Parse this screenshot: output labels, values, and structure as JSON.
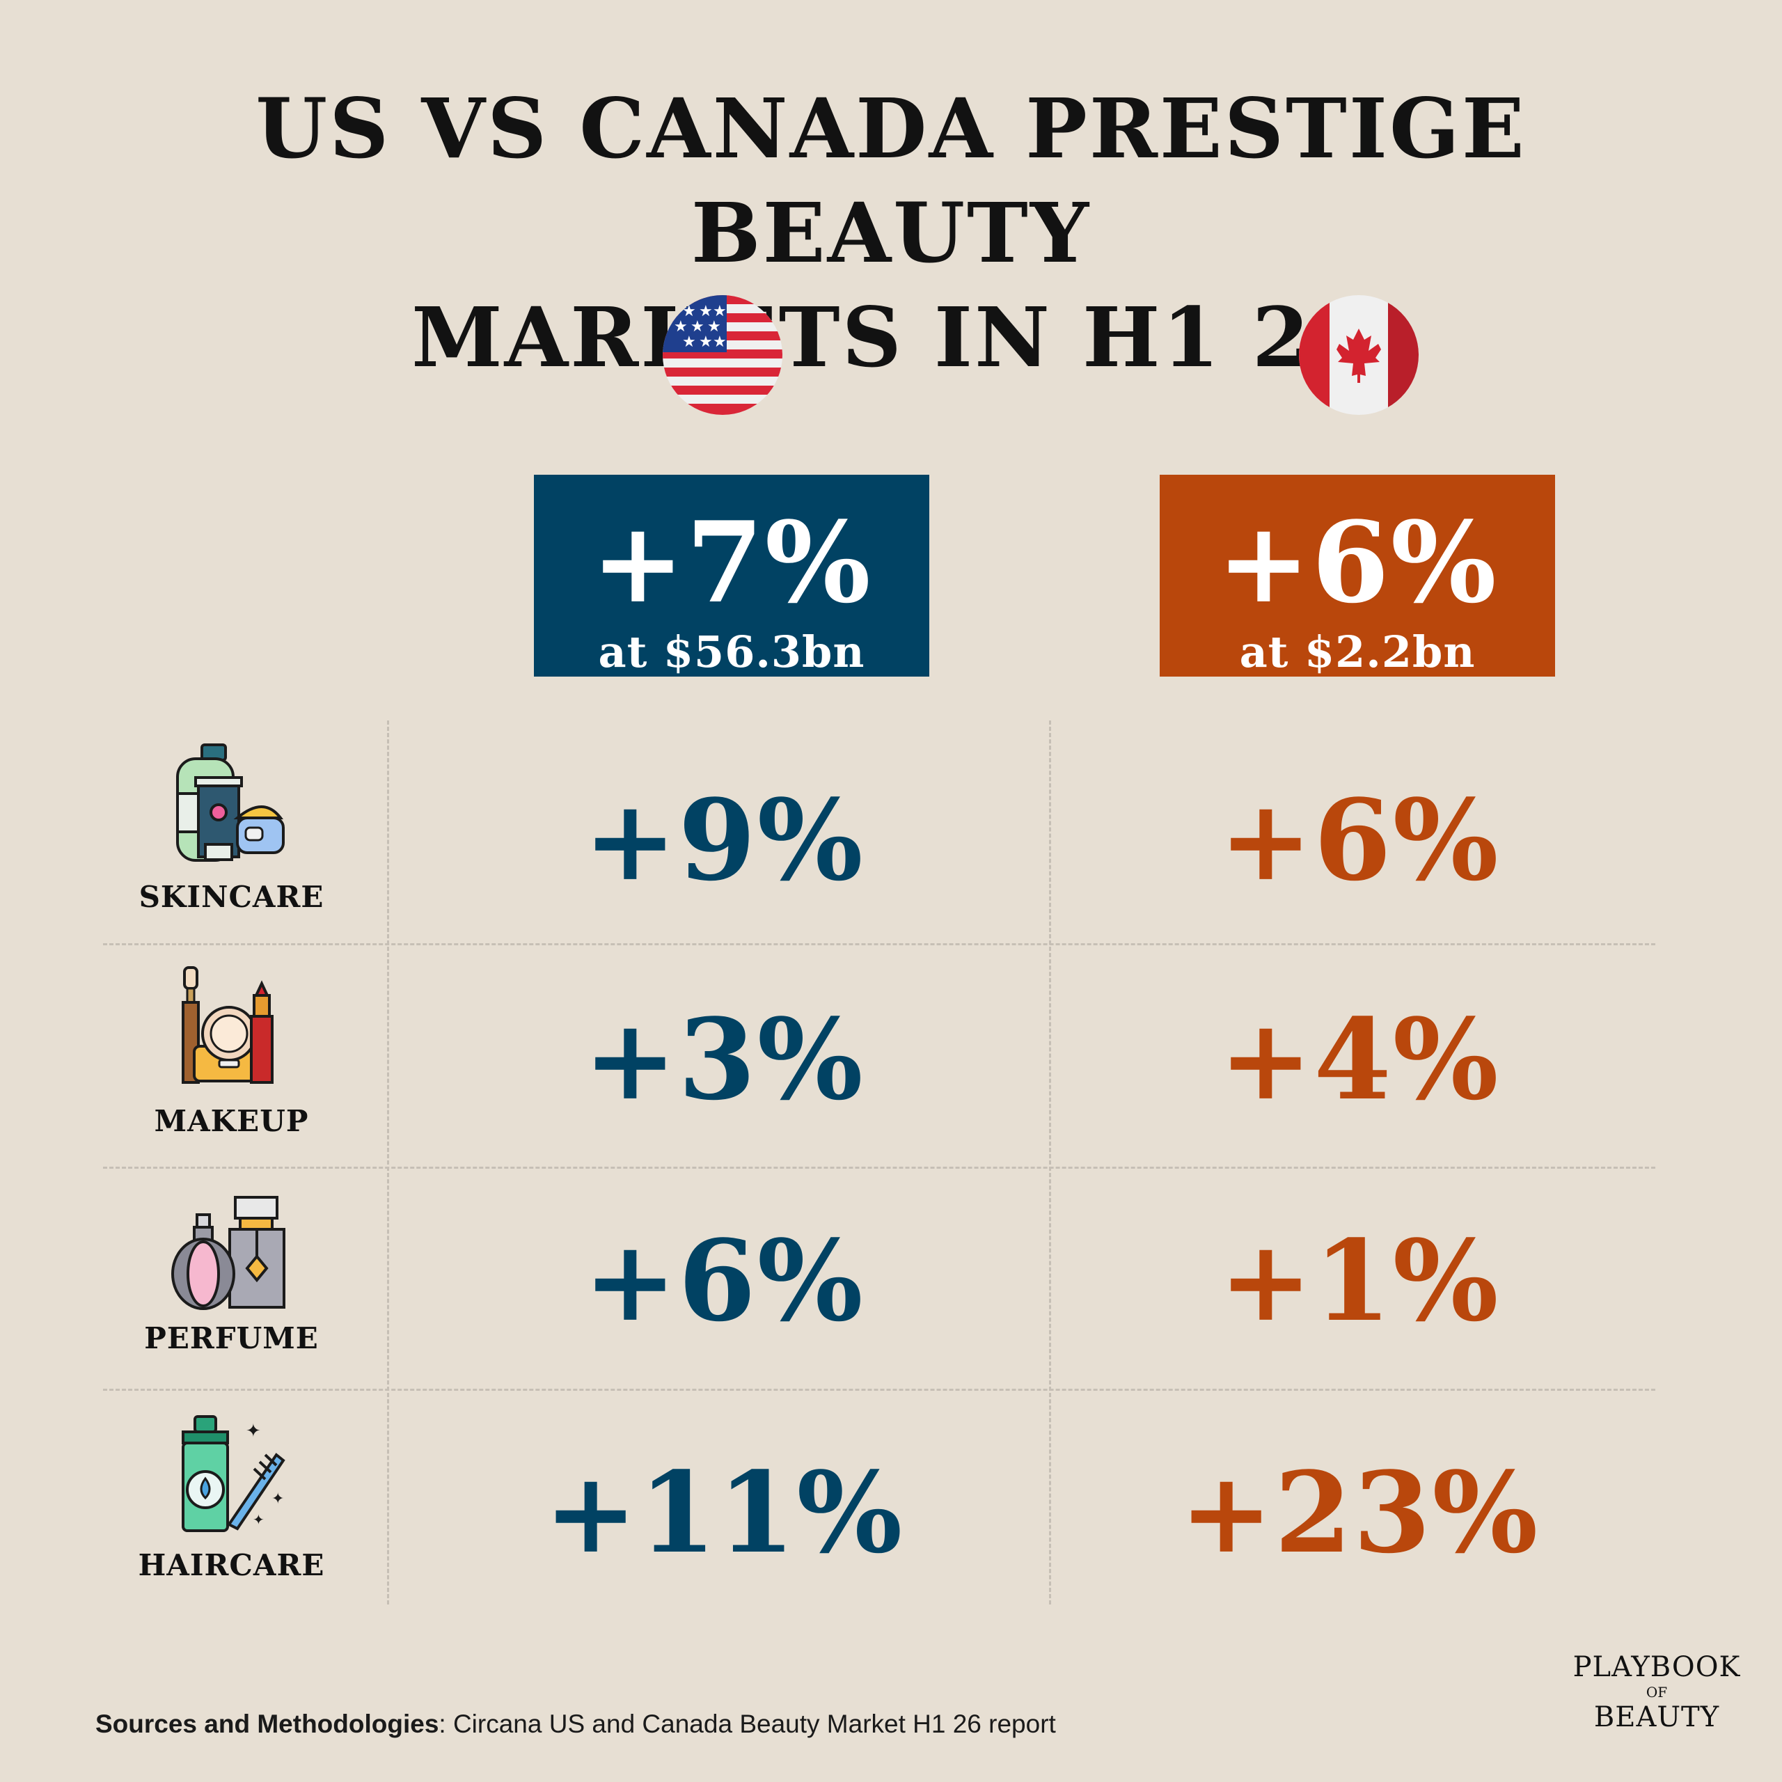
{
  "title": {
    "line1": "US VS CANADA PRESTIGE BEAUTY",
    "line2": "MARKETS IN H1 26"
  },
  "colors": {
    "background": "#e7dfd3",
    "us": "#014263",
    "canada": "#b9470c",
    "divider": "#c6bfb5"
  },
  "flags": {
    "us": "us-flag-icon",
    "canada": "canada-flag-icon"
  },
  "totals": {
    "us": {
      "growth": "+7%",
      "amount": "at $56.3bn"
    },
    "canada": {
      "growth": "+6%",
      "amount": "at $2.2bn"
    }
  },
  "categories": [
    {
      "label": "SKINCARE",
      "icon": "skincare-icon",
      "us": "+9%",
      "canada": "+6%"
    },
    {
      "label": "MAKEUP",
      "icon": "makeup-icon",
      "us": "+3%",
      "canada": "+4%"
    },
    {
      "label": "PERFUME",
      "icon": "perfume-icon",
      "us": "+6%",
      "canada": "+1%"
    },
    {
      "label": "HAIRCARE",
      "icon": "haircare-icon",
      "us": "+11%",
      "canada": "+23%"
    }
  ],
  "chart_data": {
    "type": "table",
    "title": "US VS CANADA PRESTIGE BEAUTY MARKETS IN H1 26",
    "columns": [
      "US",
      "Canada"
    ],
    "totals": {
      "US": {
        "growth_pct": 7,
        "value_bn_usd": 56.3
      },
      "Canada": {
        "growth_pct": 6,
        "value_bn_usd": 2.2
      }
    },
    "categories": [
      "SKINCARE",
      "MAKEUP",
      "PERFUME",
      "HAIRCARE"
    ],
    "series": [
      {
        "values": [
          9,
          3,
          6,
          11
        ]
      },
      {
        "values": [
          6,
          4,
          1,
          23
        ]
      }
    ]
  },
  "footnote": {
    "label": "Sources and Methodologies",
    "text": ": Circana US and Canada Beauty Market H1 26 report"
  },
  "logo": {
    "line1": "PLAYBOOK",
    "line2": "OF",
    "line3": "BEAUTY"
  }
}
